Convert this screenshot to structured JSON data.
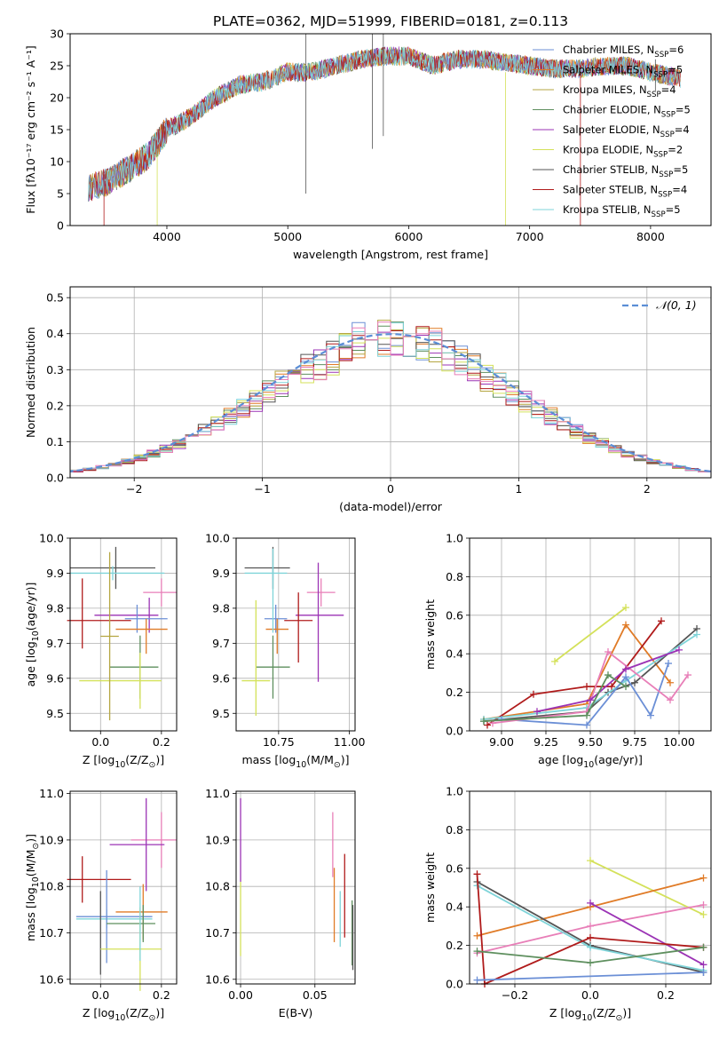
{
  "colors": {
    "chabrier_miles": "#6b8fd6",
    "salpeter_miles": "#e07b27",
    "kroupa_miles": "#b5a642",
    "chabrier_elodie": "#5e8f5e",
    "salpeter_elodie": "#9b33b5",
    "kroupa_elodie": "#d4e15a",
    "chabrier_stelib": "#555555",
    "salpeter_stelib": "#b01b1b",
    "kroupa_stelib": "#7fd4d9",
    "pink": "#e87fb8",
    "gauss": "#5b8ed6"
  },
  "chart_data": [
    {
      "id": "spectrum",
      "type": "line",
      "title": "PLATE=0362, MJD=51999, FIBERID=0181, z=0.113",
      "xlabel": "wavelength [Angstrom, rest frame]",
      "ylabel": "Flux [fλ10⁻¹⁷ erg cm⁻² s⁻¹ A⁻¹]",
      "xlim": [
        3200,
        8500
      ],
      "ylim": [
        0,
        30
      ],
      "xticks": [
        4000,
        5000,
        6000,
        7000,
        8000
      ],
      "yticks": [
        0,
        5,
        10,
        15,
        20,
        25,
        30
      ],
      "legend_position": "top-right",
      "grid": false,
      "series": [
        {
          "name": "Chabrier MILES, N$_{SSP}$=6",
          "key": "chabrier_miles"
        },
        {
          "name": "Salpeter MILES, N$_{SSP}$=5",
          "key": "salpeter_miles"
        },
        {
          "name": "Kroupa MILES, N$_{SSP}$=4",
          "key": "kroupa_miles"
        },
        {
          "name": "Chabrier ELODIE, N$_{SSP}$=5",
          "key": "chabrier_elodie"
        },
        {
          "name": "Salpeter ELODIE, N$_{SSP}$=4",
          "key": "salpeter_elodie"
        },
        {
          "name": "Kroupa ELODIE, N$_{SSP}$=2",
          "key": "kroupa_elodie"
        },
        {
          "name": "Chabrier STELIB, N$_{SSP}$=5",
          "key": "chabrier_stelib"
        },
        {
          "name": "Salpeter STELIB, N$_{SSP}$=4",
          "key": "salpeter_stelib"
        },
        {
          "name": "Kroupa STELIB, N$_{SSP}$=5",
          "key": "kroupa_stelib"
        }
      ],
      "continuum": [
        [
          3350,
          6
        ],
        [
          3500,
          6.8
        ],
        [
          3700,
          9
        ],
        [
          3850,
          11
        ],
        [
          4000,
          15
        ],
        [
          4200,
          17
        ],
        [
          4400,
          20
        ],
        [
          4600,
          22
        ],
        [
          4800,
          22.5
        ],
        [
          5000,
          24
        ],
        [
          5200,
          24
        ],
        [
          5400,
          25
        ],
        [
          5600,
          26
        ],
        [
          5800,
          26.5
        ],
        [
          6000,
          26.5
        ],
        [
          6200,
          25
        ],
        [
          6400,
          26
        ],
        [
          6600,
          26
        ],
        [
          6800,
          25.5
        ],
        [
          7000,
          25
        ],
        [
          7200,
          24.5
        ],
        [
          7400,
          24.5
        ],
        [
          7600,
          25
        ],
        [
          7800,
          25
        ],
        [
          8000,
          24
        ],
        [
          8250,
          23
        ]
      ]
    },
    {
      "id": "residuals",
      "type": "line",
      "xlabel": "(data-model)/error",
      "ylabel": "Normed distribution",
      "xlim": [
        -2.5,
        2.5
      ],
      "ylim": [
        0,
        0.53
      ],
      "xticks": [
        -2,
        -1,
        0,
        1,
        2
      ],
      "yticks": [
        0.0,
        0.1,
        0.2,
        0.3,
        0.4,
        0.5
      ],
      "legend_position": "top-right",
      "grid": true,
      "gauss_label": "$\\mathcal{N}(0,1)$",
      "bin_width": 0.1
    },
    {
      "id": "age_vs_Z",
      "type": "scatter",
      "xlabel": "Z [log$_{10}$($Z/Z_\\odot$)]",
      "ylabel": "age  [log$_{10}$($age/yr$)]",
      "xlim": [
        -0.1,
        0.25
      ],
      "ylim": [
        9.45,
        10.0
      ],
      "xticks": [
        0.0,
        0.2
      ],
      "yticks": [
        9.5,
        9.6,
        9.7,
        9.8,
        9.9,
        10.0
      ],
      "grid": true,
      "points": [
        {
          "key": "chabrier_stelib",
          "x": 0.05,
          "y": 9.915,
          "xe": [
            0.15,
            0.13
          ],
          "ye": [
            0.06,
            0.06
          ]
        },
        {
          "key": "kroupa_stelib",
          "x": 0.04,
          "y": 9.9,
          "xe": [
            0.14,
            0.17
          ],
          "ye": [
            0.02,
            0.02
          ]
        },
        {
          "key": "pink",
          "x": 0.2,
          "y": 9.845,
          "xe": [
            0.06,
            0.05
          ],
          "ye": [
            0.04,
            0.04
          ]
        },
        {
          "key": "salpeter_elodie",
          "x": 0.16,
          "y": 9.78,
          "xe": [
            0.18,
            0.03
          ],
          "ye": [
            0.05,
            0.05
          ]
        },
        {
          "key": "chabrier_miles",
          "x": 0.12,
          "y": 9.77,
          "xe": [
            0.04,
            0.1
          ],
          "ye": [
            0.04,
            0.04
          ]
        },
        {
          "key": "salpeter_stelib",
          "x": -0.06,
          "y": 9.765,
          "xe": [
            0.05,
            0.16
          ],
          "ye": [
            0.08,
            0.12
          ]
        },
        {
          "key": "salpeter_miles",
          "x": 0.15,
          "y": 9.74,
          "xe": [
            0.1,
            0.07
          ],
          "ye": [
            0.07,
            0.03
          ]
        },
        {
          "key": "chabrier_elodie",
          "x": 0.13,
          "y": 9.632,
          "xe": [
            0.1,
            0.06
          ],
          "ye": [
            0.09,
            0.09
          ]
        },
        {
          "key": "kroupa_elodie",
          "x": 0.13,
          "y": 9.593,
          "xe": [
            0.2,
            0.07
          ],
          "ye": [
            0.08,
            0.08
          ]
        },
        {
          "key": "kroupa_miles",
          "x": 0.03,
          "y": 9.72,
          "xe": [
            0.03,
            0.03
          ],
          "ye": [
            0.24,
            0.24
          ]
        }
      ]
    },
    {
      "id": "age_vs_mass",
      "type": "scatter",
      "xlabel": "mass [log$_{10}$($M/M_\\odot$)]",
      "ylabel": "",
      "xlim": [
        10.6,
        11.02
      ],
      "ylim": [
        9.45,
        10.0
      ],
      "xticks": [
        10.75,
        11.0
      ],
      "yticks": [
        9.5,
        9.6,
        9.7,
        9.8,
        9.9,
        10.0
      ],
      "grid": true,
      "points": [
        {
          "key": "chabrier_stelib",
          "x": 10.73,
          "y": 9.915,
          "xe": [
            0.1,
            0.06
          ],
          "ye": [
            0.06,
            0.06
          ]
        },
        {
          "key": "kroupa_stelib",
          "x": 10.73,
          "y": 9.9,
          "xe": [
            0.1,
            0.05
          ],
          "ye": [
            0.02,
            0.02
          ]
        },
        {
          "key": "pink",
          "x": 10.9,
          "y": 9.845,
          "xe": [
            0.05,
            0.05
          ],
          "ye": [
            0.04,
            0.04
          ]
        },
        {
          "key": "salpeter_elodie",
          "x": 10.89,
          "y": 9.78,
          "xe": [
            0.08,
            0.09
          ],
          "ye": [
            0.19,
            0.15
          ]
        },
        {
          "key": "chabrier_miles",
          "x": 10.74,
          "y": 9.77,
          "xe": [
            0.04,
            0.04
          ],
          "ye": [
            0.04,
            0.04
          ]
        },
        {
          "key": "salpeter_stelib",
          "x": 10.82,
          "y": 9.765,
          "xe": [
            0.05,
            0.05
          ],
          "ye": [
            0.12,
            0.08
          ]
        },
        {
          "key": "salpeter_miles",
          "x": 10.745,
          "y": 9.74,
          "xe": [
            0.04,
            0.04
          ],
          "ye": [
            0.07,
            0.03
          ]
        },
        {
          "key": "chabrier_elodie",
          "x": 10.73,
          "y": 9.632,
          "xe": [
            0.06,
            0.06
          ],
          "ye": [
            0.09,
            0.09
          ]
        },
        {
          "key": "kroupa_elodie",
          "x": 10.67,
          "y": 9.593,
          "xe": [
            0.05,
            0.05
          ],
          "ye": [
            0.1,
            0.23
          ]
        },
        {
          "key": "kroupa_stelib",
          "x": 10.73,
          "y": 9.85,
          "xe": [
            0.0,
            0.0
          ],
          "ye": [
            0.12,
            0.12
          ]
        }
      ]
    },
    {
      "id": "weight_vs_age",
      "type": "line",
      "xlabel": "age  [log$_{10}$($age/yr$)]",
      "ylabel": "mass weight",
      "xlim": [
        8.82,
        10.18
      ],
      "ylim": [
        0.0,
        1.0
      ],
      "xticks": [
        9.0,
        9.25,
        9.5,
        9.75,
        10.0
      ],
      "yticks": [
        0.0,
        0.2,
        0.4,
        0.6,
        0.8,
        1.0
      ],
      "grid": true,
      "series": [
        {
          "key": "kroupa_elodie",
          "x": [
            9.3,
            9.7
          ],
          "y": [
            0.36,
            0.64
          ]
        },
        {
          "key": "salpeter_miles",
          "x": [
            8.9,
            9.48,
            9.7,
            9.95
          ],
          "y": [
            0.06,
            0.14,
            0.55,
            0.25
          ]
        },
        {
          "key": "salpeter_stelib",
          "x": [
            8.92,
            9.18,
            9.48,
            9.62,
            9.9
          ],
          "y": [
            0.03,
            0.19,
            0.23,
            0.23,
            0.57
          ]
        },
        {
          "key": "chabrier_stelib",
          "x": [
            8.9,
            9.48,
            9.6,
            9.75,
            10.1
          ],
          "y": [
            0.05,
            0.1,
            0.2,
            0.25,
            0.53
          ]
        },
        {
          "key": "kroupa_stelib",
          "x": [
            8.9,
            9.48,
            9.7,
            10.1
          ],
          "y": [
            0.06,
            0.12,
            0.26,
            0.5
          ]
        },
        {
          "key": "chabrier_miles",
          "x": [
            9.0,
            9.48,
            9.7,
            9.84,
            9.94
          ],
          "y": [
            0.06,
            0.03,
            0.28,
            0.08,
            0.35
          ]
        },
        {
          "key": "pink",
          "x": [
            8.95,
            9.48,
            9.6,
            9.95,
            10.05
          ],
          "y": [
            0.04,
            0.1,
            0.41,
            0.16,
            0.29
          ]
        },
        {
          "key": "salpeter_elodie",
          "x": [
            9.2,
            9.5,
            9.7,
            10.0
          ],
          "y": [
            0.1,
            0.16,
            0.32,
            0.42
          ]
        },
        {
          "key": "chabrier_elodie",
          "x": [
            8.9,
            9.48,
            9.6,
            9.7
          ],
          "y": [
            0.05,
            0.08,
            0.29,
            0.23
          ]
        }
      ]
    },
    {
      "id": "mass_vs_Z",
      "type": "scatter",
      "xlabel": "Z [log$_{10}$($Z/Z_\\odot$)]",
      "ylabel": "mass [log$_{10}$($M/M_\\odot$)]",
      "xlim": [
        -0.1,
        0.25
      ],
      "ylim": [
        10.59,
        11.005
      ],
      "xticks": [
        0.0,
        0.2
      ],
      "yticks": [
        10.6,
        10.7,
        10.8,
        10.9,
        11.0
      ],
      "grid": true,
      "points": [
        {
          "key": "pink",
          "x": 0.2,
          "y": 10.9,
          "xe": [
            0.1,
            0.05
          ],
          "ye": [
            0.06,
            0.06
          ]
        },
        {
          "key": "salpeter_elodie",
          "x": 0.15,
          "y": 10.89,
          "xe": [
            0.12,
            0.06
          ],
          "ye": [
            0.1,
            0.1
          ]
        },
        {
          "key": "salpeter_stelib",
          "x": -0.06,
          "y": 10.815,
          "xe": [
            0.05,
            0.16
          ],
          "ye": [
            0.05,
            0.05
          ]
        },
        {
          "key": "salpeter_miles",
          "x": 0.14,
          "y": 10.745,
          "xe": [
            0.09,
            0.08
          ],
          "ye": [
            0.06,
            0.06
          ]
        },
        {
          "key": "kroupa_stelib",
          "x": 0.02,
          "y": 10.73,
          "xe": [
            0.1,
            0.15
          ],
          "ye": [
            0.02,
            0.02
          ]
        },
        {
          "key": "chabrier_miles",
          "x": 0.02,
          "y": 10.735,
          "xe": [
            0.1,
            0.15
          ],
          "ye": [
            0.1,
            0.1
          ]
        },
        {
          "key": "chabrier_elodie",
          "x": 0.14,
          "y": 10.72,
          "xe": [
            0.12,
            0.04
          ],
          "ye": [
            0.04,
            0.04
          ]
        },
        {
          "key": "chabrier_stelib",
          "x": 0.0,
          "y": 10.7,
          "xe": [
            0.0,
            0.0
          ],
          "ye": [
            0.09,
            0.09
          ]
        },
        {
          "key": "kroupa_elodie",
          "x": 0.13,
          "y": 10.665,
          "xe": [
            0.13,
            0.07
          ],
          "ye": [
            0.09,
            0.09
          ]
        },
        {
          "key": "kroupa_stelib",
          "x": 0.13,
          "y": 10.72,
          "xe": [
            0.0,
            0.0
          ],
          "ye": [
            0.08,
            0.08
          ]
        }
      ]
    },
    {
      "id": "mass_vs_ebv",
      "type": "scatter",
      "xlabel": "E(B-V)",
      "ylabel": "",
      "xlim": [
        -0.003,
        0.077
      ],
      "ylim": [
        10.59,
        11.005
      ],
      "xticks": [
        0.0,
        0.05
      ],
      "yticks": [
        10.6,
        10.7,
        10.8,
        10.9,
        11.0
      ],
      "grid": true,
      "points": [
        {
          "key": "salpeter_elodie",
          "x": 0.0,
          "y": 10.9,
          "xe": [
            0,
            0
          ],
          "ye": [
            0.09,
            0.09
          ]
        },
        {
          "key": "kroupa_elodie",
          "x": 0.0,
          "y": 10.73,
          "xe": [
            0,
            0
          ],
          "ye": [
            0.08,
            0.08
          ]
        },
        {
          "key": "pink",
          "x": 0.062,
          "y": 10.89,
          "xe": [
            0,
            0
          ],
          "ye": [
            0.07,
            0.07
          ]
        },
        {
          "key": "salpeter_miles",
          "x": 0.063,
          "y": 10.76,
          "xe": [
            0,
            0
          ],
          "ye": [
            0.08,
            0.08
          ]
        },
        {
          "key": "kroupa_stelib",
          "x": 0.067,
          "y": 10.73,
          "xe": [
            0,
            0
          ],
          "ye": [
            0.06,
            0.06
          ]
        },
        {
          "key": "salpeter_stelib",
          "x": 0.07,
          "y": 10.78,
          "xe": [
            0,
            0
          ],
          "ye": [
            0.09,
            0.09
          ]
        },
        {
          "key": "chabrier_elodie",
          "x": 0.075,
          "y": 10.7,
          "xe": [
            0,
            0
          ],
          "ye": [
            0.07,
            0.07
          ]
        },
        {
          "key": "chabrier_stelib",
          "x": 0.0755,
          "y": 10.69,
          "xe": [
            0,
            0
          ],
          "ye": [
            0.07,
            0.07
          ]
        }
      ]
    },
    {
      "id": "weight_vs_Z",
      "type": "line",
      "xlabel": "Z [log$_{10}$($Z/Z_\\odot$)]",
      "ylabel": "mass weight",
      "xlim": [
        -0.32,
        0.32
      ],
      "ylim": [
        0.0,
        1.0
      ],
      "xticks": [
        -0.2,
        0.0,
        0.2
      ],
      "yticks": [
        0.0,
        0.2,
        0.4,
        0.6,
        0.8,
        1.0
      ],
      "grid": true,
      "series": [
        {
          "key": "kroupa_elodie",
          "x": [
            0.0,
            0.3
          ],
          "y": [
            0.64,
            0.36
          ]
        },
        {
          "key": "salpeter_miles",
          "x": [
            -0.3,
            0.0,
            0.3
          ],
          "y": [
            0.25,
            0.4,
            0.55
          ]
        },
        {
          "key": "pink",
          "x": [
            -0.3,
            0.0,
            0.3
          ],
          "y": [
            0.16,
            0.3,
            0.41
          ]
        },
        {
          "key": "chabrier_stelib",
          "x": [
            -0.3,
            0.0,
            0.3
          ],
          "y": [
            0.53,
            0.2,
            0.06
          ]
        },
        {
          "key": "kroupa_stelib",
          "x": [
            -0.3,
            0.0,
            0.3
          ],
          "y": [
            0.51,
            0.19,
            0.07
          ]
        },
        {
          "key": "salpeter_elodie",
          "x": [
            0.0,
            0.3
          ],
          "y": [
            0.42,
            0.1
          ]
        },
        {
          "key": "salpeter_stelib",
          "x": [
            -0.3,
            -0.28,
            0.0,
            0.3
          ],
          "y": [
            0.57,
            0.0,
            0.24,
            0.19
          ]
        },
        {
          "key": "chabrier_miles",
          "x": [
            -0.3,
            0.3
          ],
          "y": [
            0.02,
            0.06
          ]
        },
        {
          "key": "chabrier_elodie",
          "x": [
            -0.3,
            0.0,
            0.3
          ],
          "y": [
            0.17,
            0.11,
            0.19
          ]
        }
      ]
    }
  ]
}
